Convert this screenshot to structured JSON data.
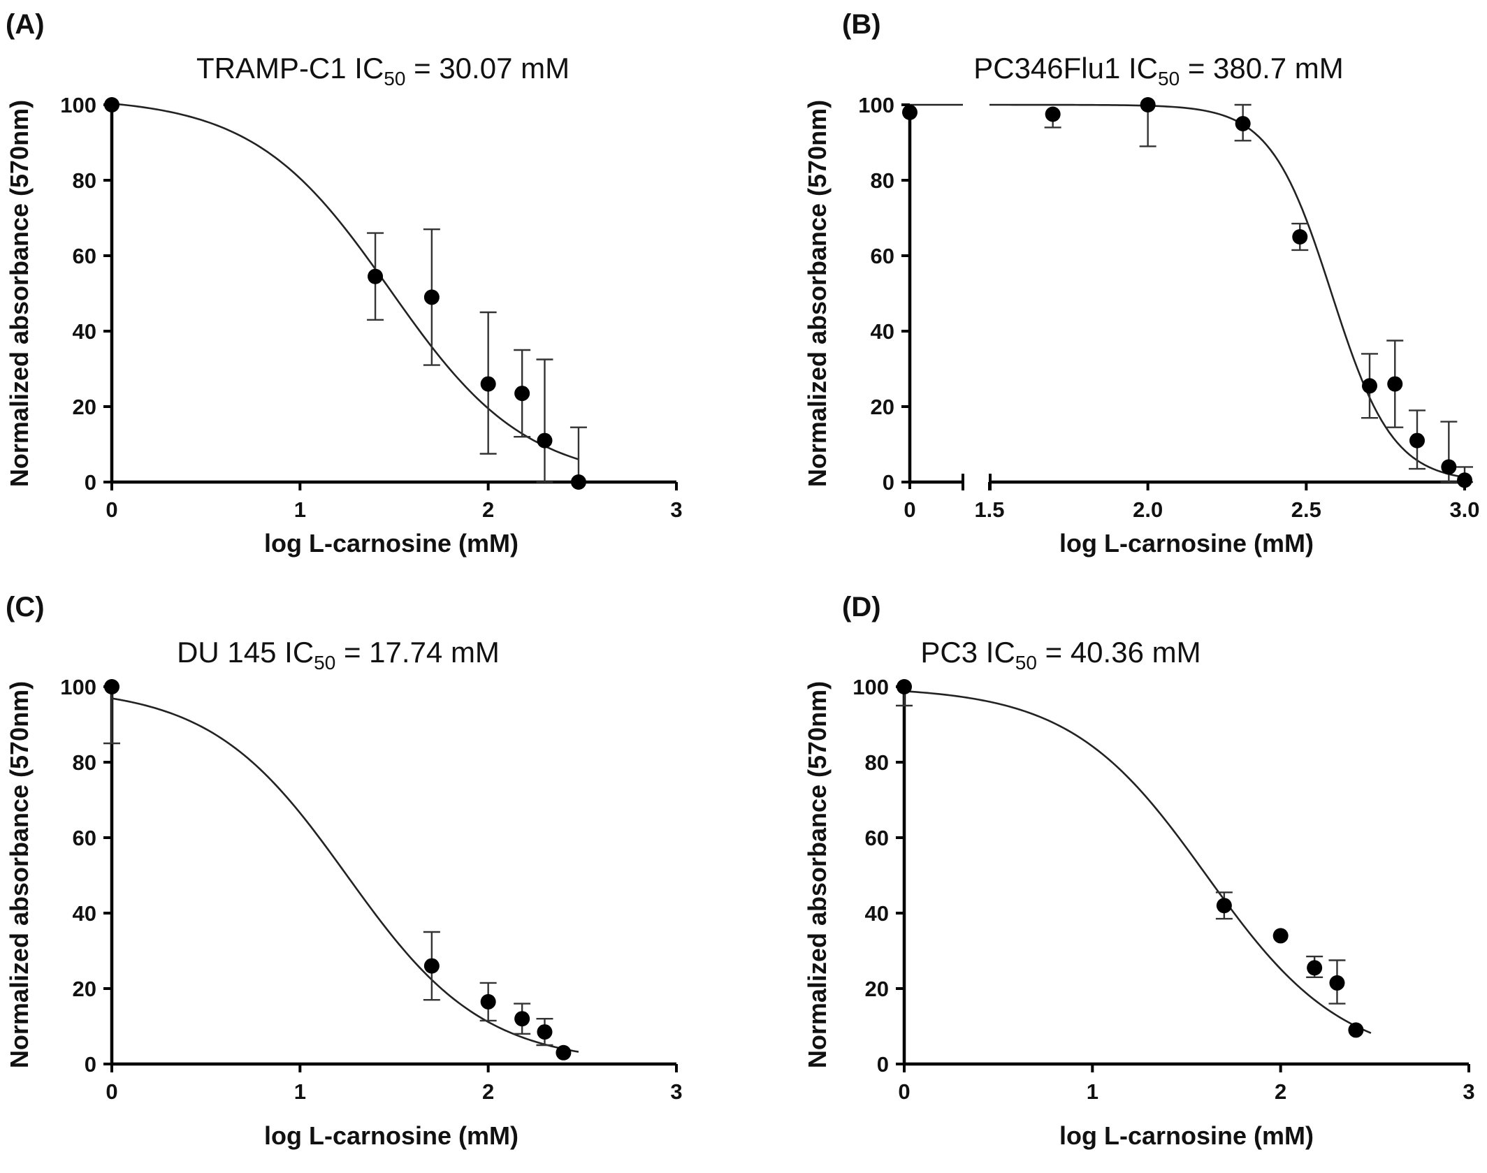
{
  "chart_data": [
    {
      "panel": "(A)",
      "type": "scatter",
      "title_prefix": "TRAMP-C1 IC",
      "title_sub": "50",
      "title_suffix": " = 30.07 mM",
      "xlabel": "log L-carnosine (mM)",
      "ylabel": "Normalized absorbance (570nm)",
      "xlim": [
        0,
        3
      ],
      "ylim": [
        0,
        100
      ],
      "xticks": [
        0,
        1,
        2,
        3
      ],
      "xtick_labels": [
        "0",
        "1",
        "2",
        "3"
      ],
      "yticks": [
        0,
        20,
        40,
        60,
        80,
        100
      ],
      "ytick_labels": [
        "0",
        "20",
        "40",
        "60",
        "80",
        "100"
      ],
      "x_break": null,
      "points": [
        {
          "x": 0,
          "y": 100,
          "err_hi": 0,
          "err_lo": 0
        },
        {
          "x": 1.4,
          "y": 54.5,
          "err_hi": 66,
          "err_lo": 43
        },
        {
          "x": 1.7,
          "y": 49,
          "err_hi": 67,
          "err_lo": 31
        },
        {
          "x": 2.0,
          "y": 26,
          "err_hi": 45,
          "err_lo": 7.5
        },
        {
          "x": 2.18,
          "y": 23.5,
          "err_hi": 35,
          "err_lo": 12
        },
        {
          "x": 2.3,
          "y": 11,
          "err_hi": 32.5,
          "err_lo": 0
        },
        {
          "x": 2.48,
          "y": 0,
          "err_hi": 14.5,
          "err_lo": 0
        }
      ],
      "curve": {
        "top": 102,
        "bottom": 0,
        "logIC50": 1.478,
        "hill": 1.2,
        "x_start": 0,
        "x_end": 2.48
      },
      "grid": false
    },
    {
      "panel": "(B)",
      "type": "scatter",
      "title_prefix": "PC346Flu1 IC",
      "title_sub": "50",
      "title_suffix": " = 380.7 mM",
      "xlabel": "log L-carnosine (mM)",
      "ylabel": "Normalized absorbance (570nm)",
      "xlim": [
        1.5,
        3.0
      ],
      "ylim": [
        0,
        100
      ],
      "xticks": [
        1.5,
        2.0,
        2.5,
        3.0
      ],
      "xtick_labels": [
        "1.5",
        "2.0",
        "2.5",
        "3.0"
      ],
      "yticks": [
        0,
        20,
        40,
        60,
        80,
        100
      ],
      "ytick_labels": [
        "0",
        "20",
        "40",
        "60",
        "80",
        "100"
      ],
      "x_break": {
        "first_label": "0",
        "first_value": 0
      },
      "points": [
        {
          "x": 0,
          "y": 98,
          "err_hi": 0,
          "err_lo": 0
        },
        {
          "x": 1.7,
          "y": 97.5,
          "err_hi": 0,
          "err_lo": 94
        },
        {
          "x": 2.0,
          "y": 100,
          "err_hi": 0,
          "err_lo": 89
        },
        {
          "x": 2.3,
          "y": 95,
          "err_hi": 100,
          "err_lo": 90.5
        },
        {
          "x": 2.48,
          "y": 65,
          "err_hi": 68.5,
          "err_lo": 61.5
        },
        {
          "x": 2.7,
          "y": 25.5,
          "err_hi": 34,
          "err_lo": 17
        },
        {
          "x": 2.78,
          "y": 26,
          "err_hi": 37.5,
          "err_lo": 14.5
        },
        {
          "x": 2.85,
          "y": 11,
          "err_hi": 19,
          "err_lo": 3.5
        },
        {
          "x": 2.95,
          "y": 4,
          "err_hi": 16,
          "err_lo": 0
        },
        {
          "x": 3.0,
          "y": 0.5,
          "err_hi": 4,
          "err_lo": 0
        }
      ],
      "curve": {
        "top": 100,
        "bottom": 0,
        "logIC50": 2.58,
        "hill": 4.5,
        "x_start": 1.5,
        "x_end": 3.0
      },
      "grid": false
    },
    {
      "panel": "(C)",
      "type": "scatter",
      "title_prefix": "DU 145 IC",
      "title_sub": "50",
      "title_suffix": " = 17.74 mM",
      "xlabel": "log L-carnosine (mM)",
      "ylabel": "Normalized absorbance (570nm)",
      "xlim": [
        0,
        3
      ],
      "ylim": [
        0,
        100
      ],
      "xticks": [
        0,
        1,
        2,
        3
      ],
      "xtick_labels": [
        "0",
        "1",
        "2",
        "3"
      ],
      "yticks": [
        0,
        20,
        40,
        60,
        80,
        100
      ],
      "ytick_labels": [
        "0",
        "20",
        "40",
        "60",
        "80",
        "100"
      ],
      "x_break": null,
      "points": [
        {
          "x": 0,
          "y": 100,
          "err_hi": 0,
          "err_lo": 85
        },
        {
          "x": 1.7,
          "y": 26,
          "err_hi": 35,
          "err_lo": 17
        },
        {
          "x": 2.0,
          "y": 16.5,
          "err_hi": 21.5,
          "err_lo": 11.5
        },
        {
          "x": 2.18,
          "y": 12,
          "err_hi": 16,
          "err_lo": 8
        },
        {
          "x": 2.3,
          "y": 8.5,
          "err_hi": 12,
          "err_lo": 5
        },
        {
          "x": 2.4,
          "y": 3,
          "err_hi": 0,
          "err_lo": 0
        }
      ],
      "curve": {
        "top": 100,
        "bottom": 0,
        "logIC50": 1.249,
        "hill": 1.2,
        "x_start": 0,
        "x_end": 2.48
      },
      "grid": false
    },
    {
      "panel": "(D)",
      "type": "scatter",
      "title_prefix": "PC3 IC",
      "title_sub": "50",
      "title_suffix": " = 40.36 mM",
      "xlabel": "log L-carnosine (mM)",
      "ylabel": "Normalized absorbance (570nm)",
      "xlim": [
        0,
        3
      ],
      "ylim": [
        0,
        100
      ],
      "xticks": [
        0,
        1,
        2,
        3
      ],
      "xtick_labels": [
        "0",
        "1",
        "2",
        "3"
      ],
      "yticks": [
        0,
        20,
        40,
        60,
        80,
        100
      ],
      "ytick_labels": [
        "0",
        "20",
        "40",
        "60",
        "80",
        "100"
      ],
      "x_break": null,
      "points": [
        {
          "x": 0,
          "y": 100,
          "err_hi": 0,
          "err_lo": 95
        },
        {
          "x": 1.7,
          "y": 42,
          "err_hi": 45.5,
          "err_lo": 38.5
        },
        {
          "x": 2.0,
          "y": 34,
          "err_hi": 0,
          "err_lo": 0
        },
        {
          "x": 2.18,
          "y": 25.5,
          "err_hi": 28.5,
          "err_lo": 23
        },
        {
          "x": 2.3,
          "y": 21.5,
          "err_hi": 27.5,
          "err_lo": 16
        },
        {
          "x": 2.4,
          "y": 9,
          "err_hi": 0,
          "err_lo": 0
        }
      ],
      "curve": {
        "top": 100,
        "bottom": 0,
        "logIC50": 1.606,
        "hill": 1.2,
        "x_start": 0,
        "x_end": 2.48
      },
      "grid": false
    }
  ]
}
